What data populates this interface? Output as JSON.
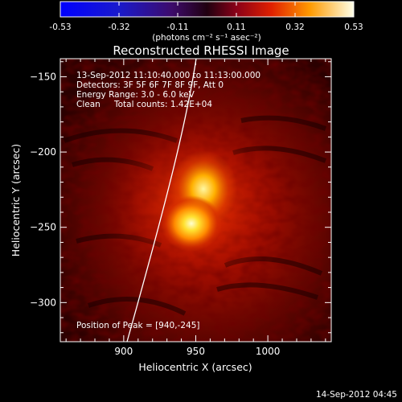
{
  "colorbar": {
    "tick_labels": [
      "-0.53",
      "-0.32",
      "-0.11",
      "0.11",
      "0.32",
      "0.53"
    ],
    "units": "(photons cm⁻² s⁻¹ asec⁻²)",
    "range": [
      -0.53,
      0.53
    ]
  },
  "plot": {
    "title": "Reconstructed RHESSI Image",
    "xlabel": "Heliocentric X (arcsec)",
    "ylabel": "Heliocentric Y (arcsec)",
    "xticks": [
      "900",
      "950",
      "1000"
    ],
    "yticks": [
      "-150",
      "-200",
      "-250",
      "-300"
    ],
    "xlim": [
      856,
      1044
    ],
    "ylim": [
      -326,
      -138
    ]
  },
  "annotations": {
    "time_range": "13-Sep-2012 11:10:40.000 to 11:13:00.000",
    "detectors": "Detectors: 3F 5F 6F 7F 8F 9F, Att 0",
    "energy": "Energy Range: 3.0 - 6.0 keV",
    "method": "Clean",
    "counts": "Total counts: 1.42E+04",
    "peak": "Position of Peak = [940,-245]"
  },
  "footer": {
    "timestamp": "14-Sep-2012 04:45"
  },
  "colors": {
    "background": "#000000",
    "axis": "#ffffff",
    "limb": "#ffffff"
  }
}
